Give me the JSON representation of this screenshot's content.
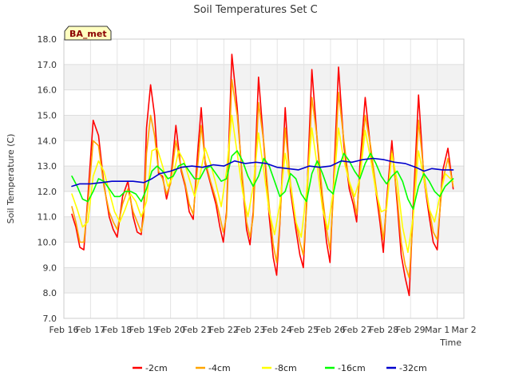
{
  "chart_data": {
    "type": "line",
    "title": "Soil Temperatures Set C",
    "xlabel": "Time",
    "ylabel": "Soil Temperature (C)",
    "badge": "BA_met",
    "ylim": [
      7.0,
      18.0
    ],
    "xlim_days": [
      16,
      31
    ],
    "y_ticks": [
      "7.0",
      "8.0",
      "9.0",
      "10.0",
      "11.0",
      "12.0",
      "13.0",
      "14.0",
      "15.0",
      "16.0",
      "17.0",
      "18.0"
    ],
    "x_ticks": [
      "Feb 16",
      "Feb 17",
      "Feb 18",
      "Feb 19",
      "Feb 20",
      "Feb 21",
      "Feb 22",
      "Feb 23",
      "Feb 24",
      "Feb 25",
      "Feb 26",
      "Feb 27",
      "Feb 28",
      "Feb 29",
      "Mar 1",
      "Mar 2"
    ],
    "grid": true,
    "legend_position": "bottom",
    "series": [
      {
        "name": "-2cm",
        "color": "#ff0000",
        "x": [
          16.3,
          16.45,
          16.6,
          16.75,
          16.9,
          17.1,
          17.3,
          17.5,
          17.7,
          17.85,
          18.0,
          18.2,
          18.4,
          18.6,
          18.75,
          18.9,
          19.0,
          19.1,
          19.25,
          19.4,
          19.55,
          19.7,
          19.85,
          20.0,
          20.2,
          20.4,
          20.55,
          20.7,
          20.85,
          21.0,
          21.15,
          21.3,
          21.5,
          21.7,
          21.85,
          21.98,
          22.1,
          22.3,
          22.5,
          22.7,
          22.85,
          22.98,
          23.1,
          23.3,
          23.5,
          23.7,
          23.85,
          23.98,
          24.1,
          24.3,
          24.5,
          24.7,
          24.85,
          24.98,
          25.1,
          25.3,
          25.5,
          25.7,
          25.85,
          25.98,
          26.1,
          26.3,
          26.5,
          26.7,
          26.85,
          26.98,
          27.1,
          27.3,
          27.5,
          27.7,
          27.85,
          27.98,
          28.1,
          28.3,
          28.5,
          28.65,
          28.8,
          28.95,
          29.1,
          29.3,
          29.5,
          29.7,
          29.85,
          30.0,
          30.2,
          30.4,
          30.6
        ],
        "y": [
          11.1,
          10.6,
          9.8,
          9.7,
          11.8,
          14.8,
          14.2,
          12.3,
          11.0,
          10.5,
          10.2,
          11.8,
          12.4,
          11.0,
          10.4,
          10.3,
          11.4,
          14.5,
          16.2,
          15.0,
          12.7,
          12.6,
          11.7,
          12.4,
          14.6,
          12.8,
          12.2,
          11.2,
          10.9,
          13.3,
          15.3,
          13.1,
          12.3,
          11.5,
          10.6,
          10.0,
          11.2,
          17.4,
          15.3,
          12.3,
          10.5,
          9.9,
          11.2,
          16.5,
          13.8,
          11.0,
          9.4,
          8.7,
          10.7,
          15.3,
          12.0,
          10.5,
          9.5,
          9.0,
          11.5,
          16.8,
          14.0,
          11.5,
          10.0,
          9.2,
          12.0,
          16.9,
          13.8,
          12.1,
          11.5,
          10.8,
          13.0,
          15.7,
          13.7,
          12.0,
          10.8,
          9.6,
          11.6,
          14.0,
          11.5,
          9.5,
          8.6,
          7.9,
          11.4,
          15.8,
          12.5,
          11.0,
          10.0,
          9.7,
          12.8,
          13.7,
          12.1
        ]
      },
      {
        "name": "-4cm",
        "color": "#ffa500",
        "x": [
          16.3,
          16.45,
          16.6,
          16.75,
          16.9,
          17.1,
          17.3,
          17.5,
          17.7,
          17.85,
          18.0,
          18.2,
          18.4,
          18.6,
          18.75,
          18.9,
          19.0,
          19.1,
          19.25,
          19.4,
          19.55,
          19.7,
          19.85,
          20.0,
          20.2,
          20.4,
          20.55,
          20.7,
          20.85,
          21.0,
          21.15,
          21.3,
          21.5,
          21.7,
          21.85,
          21.98,
          22.1,
          22.3,
          22.5,
          22.7,
          22.85,
          22.98,
          23.1,
          23.3,
          23.5,
          23.7,
          23.85,
          23.98,
          24.1,
          24.3,
          24.5,
          24.7,
          24.85,
          24.98,
          25.1,
          25.3,
          25.5,
          25.7,
          25.85,
          25.98,
          26.1,
          26.3,
          26.5,
          26.7,
          26.85,
          26.98,
          27.1,
          27.3,
          27.5,
          27.7,
          27.85,
          27.98,
          28.1,
          28.3,
          28.5,
          28.65,
          28.8,
          28.95,
          29.1,
          29.3,
          29.5,
          29.7,
          29.85,
          30.0,
          30.2,
          30.4,
          30.6
        ],
        "y": [
          11.4,
          10.8,
          10.0,
          10.0,
          11.5,
          14.0,
          13.8,
          12.2,
          11.2,
          10.8,
          10.5,
          11.5,
          12.1,
          11.2,
          10.8,
          10.4,
          11.0,
          13.5,
          15.0,
          14.2,
          12.8,
          12.5,
          11.9,
          12.3,
          14.0,
          12.9,
          12.3,
          11.5,
          11.1,
          12.8,
          14.6,
          13.2,
          12.4,
          11.7,
          11.0,
          10.4,
          11.0,
          16.4,
          15.0,
          12.5,
          10.8,
          10.2,
          11.0,
          15.5,
          13.9,
          11.4,
          9.9,
          9.2,
          10.8,
          14.5,
          12.3,
          10.8,
          10.0,
          9.5,
          11.3,
          15.7,
          14.1,
          11.8,
          10.5,
          9.7,
          11.7,
          15.9,
          14.0,
          12.3,
          11.8,
          11.1,
          12.6,
          15.0,
          13.8,
          12.2,
          11.1,
          10.1,
          11.4,
          13.6,
          11.8,
          10.0,
          9.1,
          8.6,
          11.0,
          14.8,
          12.7,
          11.3,
          10.4,
          10.1,
          12.4,
          13.3,
          12.2
        ]
      },
      {
        "name": "-8cm",
        "color": "#ffff00",
        "x": [
          16.3,
          16.5,
          16.7,
          16.9,
          17.1,
          17.3,
          17.5,
          17.7,
          17.9,
          18.1,
          18.3,
          18.5,
          18.7,
          18.9,
          19.1,
          19.3,
          19.5,
          19.7,
          19.9,
          20.1,
          20.3,
          20.5,
          20.7,
          20.9,
          21.1,
          21.3,
          21.5,
          21.7,
          21.9,
          22.1,
          22.3,
          22.5,
          22.7,
          22.9,
          23.1,
          23.3,
          23.5,
          23.7,
          23.9,
          24.1,
          24.3,
          24.5,
          24.7,
          24.9,
          25.1,
          25.3,
          25.5,
          25.7,
          25.9,
          26.1,
          26.3,
          26.5,
          26.7,
          26.9,
          27.1,
          27.3,
          27.5,
          27.7,
          27.9,
          28.1,
          28.3,
          28.5,
          28.7,
          28.9,
          29.1,
          29.3,
          29.5,
          29.7,
          29.9,
          30.1,
          30.3,
          30.6
        ],
        "y": [
          11.9,
          11.3,
          10.6,
          10.8,
          12.6,
          13.2,
          12.8,
          12.0,
          11.2,
          10.8,
          11.3,
          11.9,
          11.6,
          11.0,
          11.6,
          13.6,
          13.7,
          13.0,
          12.2,
          12.6,
          13.6,
          13.2,
          12.5,
          11.8,
          12.6,
          13.7,
          13.1,
          12.3,
          11.4,
          12.8,
          15.0,
          13.5,
          12.0,
          11.0,
          12.2,
          14.3,
          12.8,
          11.2,
          10.3,
          11.5,
          13.5,
          12.2,
          10.8,
          10.2,
          12.0,
          14.5,
          13.0,
          11.3,
          10.5,
          12.0,
          14.5,
          13.2,
          12.4,
          11.8,
          12.5,
          14.4,
          13.3,
          12.0,
          11.2,
          11.3,
          13.5,
          12.4,
          10.6,
          9.6,
          11.0,
          13.6,
          12.5,
          11.3,
          10.8,
          11.8,
          12.7,
          12.4
        ]
      },
      {
        "name": "-16cm",
        "color": "#00ff00",
        "x": [
          16.3,
          16.5,
          16.7,
          16.9,
          17.1,
          17.3,
          17.5,
          17.7,
          17.9,
          18.1,
          18.3,
          18.5,
          18.7,
          18.9,
          19.1,
          19.3,
          19.5,
          19.7,
          19.9,
          20.1,
          20.3,
          20.5,
          20.7,
          20.9,
          21.1,
          21.3,
          21.5,
          21.7,
          21.9,
          22.1,
          22.3,
          22.5,
          22.7,
          22.9,
          23.1,
          23.3,
          23.5,
          23.7,
          23.9,
          24.1,
          24.3,
          24.5,
          24.7,
          24.9,
          25.1,
          25.3,
          25.5,
          25.7,
          25.9,
          26.1,
          26.3,
          26.5,
          26.7,
          26.9,
          27.1,
          27.3,
          27.5,
          27.7,
          27.9,
          28.1,
          28.3,
          28.5,
          28.7,
          28.9,
          29.1,
          29.3,
          29.5,
          29.7,
          29.9,
          30.1,
          30.3,
          30.6
        ],
        "y": [
          12.6,
          12.2,
          11.7,
          11.6,
          12.0,
          12.5,
          12.4,
          12.1,
          11.8,
          11.8,
          12.0,
          12.0,
          11.9,
          11.6,
          12.1,
          12.8,
          13.0,
          12.8,
          12.5,
          12.6,
          13.0,
          13.1,
          12.8,
          12.5,
          12.5,
          12.9,
          13.0,
          12.7,
          12.4,
          12.5,
          13.4,
          13.6,
          13.2,
          12.6,
          12.2,
          12.6,
          13.3,
          13.0,
          12.4,
          11.8,
          12.0,
          12.7,
          12.5,
          11.9,
          11.6,
          12.7,
          13.2,
          12.7,
          12.1,
          11.9,
          12.9,
          13.5,
          13.2,
          12.8,
          12.5,
          13.1,
          13.5,
          13.1,
          12.6,
          12.3,
          12.6,
          12.8,
          12.4,
          11.7,
          11.3,
          12.2,
          12.7,
          12.4,
          12.0,
          11.8,
          12.2,
          12.5
        ]
      },
      {
        "name": "-32cm",
        "color": "#0000cd",
        "x": [
          16.3,
          16.6,
          17.0,
          17.4,
          17.8,
          18.2,
          18.6,
          19.0,
          19.3,
          19.6,
          20.0,
          20.4,
          20.8,
          21.2,
          21.6,
          22.0,
          22.4,
          22.8,
          23.2,
          23.6,
          24.0,
          24.4,
          24.8,
          25.2,
          25.6,
          26.0,
          26.4,
          26.8,
          27.2,
          27.6,
          28.0,
          28.4,
          28.8,
          29.2,
          29.5,
          29.8,
          30.2,
          30.6
        ],
        "y": [
          12.2,
          12.3,
          12.3,
          12.35,
          12.4,
          12.4,
          12.4,
          12.35,
          12.5,
          12.7,
          12.8,
          12.95,
          13.0,
          12.95,
          13.05,
          13.0,
          13.2,
          13.1,
          13.15,
          13.1,
          12.95,
          12.9,
          12.85,
          13.0,
          12.95,
          13.0,
          13.2,
          13.15,
          13.25,
          13.3,
          13.25,
          13.15,
          13.1,
          12.95,
          12.8,
          12.9,
          12.85,
          12.85
        ]
      }
    ]
  }
}
